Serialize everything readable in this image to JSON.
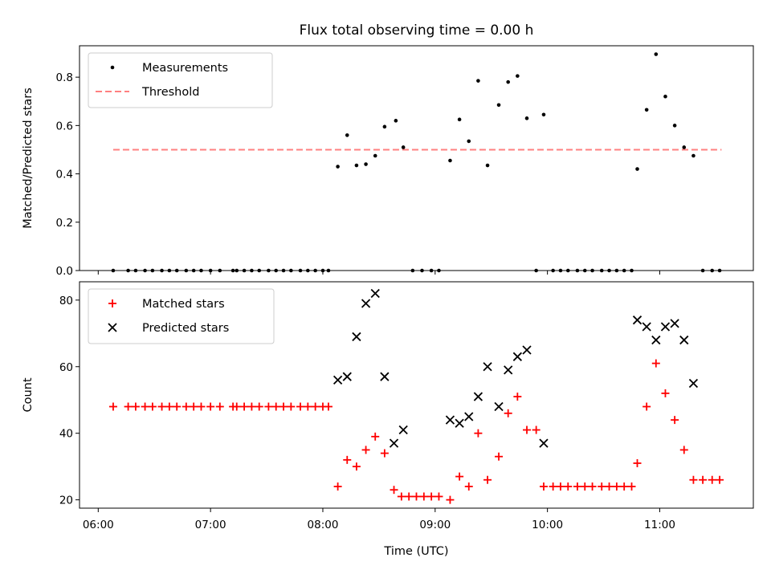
{
  "chart_data": {
    "title": "Flux total observing time = 0.00 h",
    "xlabel": "Time (UTC)",
    "xlim": [
      "05:50",
      "11:50"
    ],
    "x_ticks": [
      "06:00",
      "07:00",
      "08:00",
      "09:00",
      "10:00",
      "11:00"
    ],
    "panels": [
      {
        "type": "scatter",
        "ylabel": "Matched/Predicted stars",
        "ylim": [
          0,
          0.93
        ],
        "y_ticks": [
          0.0,
          0.2,
          0.4,
          0.6,
          0.8
        ],
        "legend_position": "upper-left",
        "threshold": {
          "name": "Threshold",
          "value": 0.5,
          "x_start": "06:08",
          "x_end": "11:33",
          "color": "#ff8080"
        },
        "series": [
          {
            "name": "Measurements",
            "color": "#000000",
            "marker": "dot",
            "points": [
              [
                "06:08",
                0
              ],
              [
                "06:16",
                0
              ],
              [
                "06:20",
                0
              ],
              [
                "06:25",
                0
              ],
              [
                "06:29",
                0
              ],
              [
                "06:34",
                0
              ],
              [
                "06:38",
                0
              ],
              [
                "06:42",
                0
              ],
              [
                "06:47",
                0
              ],
              [
                "06:51",
                0
              ],
              [
                "06:55",
                0
              ],
              [
                "07:00",
                0
              ],
              [
                "07:05",
                0
              ],
              [
                "07:12",
                0
              ],
              [
                "07:14",
                0
              ],
              [
                "07:18",
                0
              ],
              [
                "07:22",
                0
              ],
              [
                "07:26",
                0
              ],
              [
                "07:31",
                0
              ],
              [
                "07:35",
                0
              ],
              [
                "07:39",
                0
              ],
              [
                "07:43",
                0
              ],
              [
                "07:48",
                0
              ],
              [
                "07:52",
                0
              ],
              [
                "07:56",
                0
              ],
              [
                "08:00",
                0
              ],
              [
                "08:03",
                0
              ],
              [
                "08:08",
                0.43
              ],
              [
                "08:13",
                0.56
              ],
              [
                "08:18",
                0.435
              ],
              [
                "08:23",
                0.44
              ],
              [
                "08:28",
                0.475
              ],
              [
                "08:33",
                0.595
              ],
              [
                "08:39",
                0.62
              ],
              [
                "08:43",
                0.51
              ],
              [
                "08:48",
                0
              ],
              [
                "08:53",
                0
              ],
              [
                "08:58",
                0
              ],
              [
                "09:02",
                0
              ],
              [
                "09:08",
                0.455
              ],
              [
                "09:13",
                0.625
              ],
              [
                "09:18",
                0.535
              ],
              [
                "09:23",
                0.785
              ],
              [
                "09:28",
                0.435
              ],
              [
                "09:34",
                0.685
              ],
              [
                "09:39",
                0.78
              ],
              [
                "09:44",
                0.805
              ],
              [
                "09:49",
                0.63
              ],
              [
                "09:54",
                0
              ],
              [
                "09:58",
                0.645
              ],
              [
                "10:03",
                0
              ],
              [
                "10:07",
                0
              ],
              [
                "10:11",
                0
              ],
              [
                "10:16",
                0
              ],
              [
                "10:20",
                0
              ],
              [
                "10:24",
                0
              ],
              [
                "10:29",
                0
              ],
              [
                "10:33",
                0
              ],
              [
                "10:37",
                0
              ],
              [
                "10:41",
                0
              ],
              [
                "10:45",
                0
              ],
              [
                "10:48",
                0.42
              ],
              [
                "10:53",
                0.665
              ],
              [
                "10:58",
                0.895
              ],
              [
                "11:03",
                0.72
              ],
              [
                "11:08",
                0.6
              ],
              [
                "11:13",
                0.51
              ],
              [
                "11:18",
                0.475
              ],
              [
                "11:23",
                0
              ],
              [
                "11:28",
                0
              ],
              [
                "11:32",
                0
              ]
            ]
          }
        ]
      },
      {
        "type": "scatter",
        "ylabel": "Count",
        "ylim": [
          17.5,
          85.5
        ],
        "y_ticks": [
          20,
          40,
          60,
          80
        ],
        "legend_position": "upper-left",
        "series": [
          {
            "name": "Matched stars",
            "color": "#ff0000",
            "marker": "plus",
            "points": [
              [
                "06:08",
                48
              ],
              [
                "06:16",
                48
              ],
              [
                "06:20",
                48
              ],
              [
                "06:25",
                48
              ],
              [
                "06:29",
                48
              ],
              [
                "06:34",
                48
              ],
              [
                "06:38",
                48
              ],
              [
                "06:42",
                48
              ],
              [
                "06:47",
                48
              ],
              [
                "06:51",
                48
              ],
              [
                "06:55",
                48
              ],
              [
                "07:00",
                48
              ],
              [
                "07:05",
                48
              ],
              [
                "07:12",
                48
              ],
              [
                "07:14",
                48
              ],
              [
                "07:18",
                48
              ],
              [
                "07:22",
                48
              ],
              [
                "07:26",
                48
              ],
              [
                "07:31",
                48
              ],
              [
                "07:35",
                48
              ],
              [
                "07:39",
                48
              ],
              [
                "07:43",
                48
              ],
              [
                "07:48",
                48
              ],
              [
                "07:52",
                48
              ],
              [
                "07:56",
                48
              ],
              [
                "08:00",
                48
              ],
              [
                "08:03",
                48
              ],
              [
                "08:08",
                24
              ],
              [
                "08:13",
                32
              ],
              [
                "08:18",
                30
              ],
              [
                "08:23",
                35
              ],
              [
                "08:28",
                39
              ],
              [
                "08:33",
                34
              ],
              [
                "08:38",
                23
              ],
              [
                "08:42",
                21
              ],
              [
                "08:46",
                21
              ],
              [
                "08:50",
                21
              ],
              [
                "08:54",
                21
              ],
              [
                "08:58",
                21
              ],
              [
                "09:02",
                21
              ],
              [
                "09:08",
                20
              ],
              [
                "09:13",
                27
              ],
              [
                "09:18",
                24
              ],
              [
                "09:23",
                40
              ],
              [
                "09:28",
                26
              ],
              [
                "09:34",
                33
              ],
              [
                "09:39",
                46
              ],
              [
                "09:44",
                51
              ],
              [
                "09:49",
                41
              ],
              [
                "09:54",
                41
              ],
              [
                "09:58",
                24
              ],
              [
                "10:03",
                24
              ],
              [
                "10:07",
                24
              ],
              [
                "10:11",
                24
              ],
              [
                "10:16",
                24
              ],
              [
                "10:20",
                24
              ],
              [
                "10:24",
                24
              ],
              [
                "10:29",
                24
              ],
              [
                "10:33",
                24
              ],
              [
                "10:37",
                24
              ],
              [
                "10:41",
                24
              ],
              [
                "10:45",
                24
              ],
              [
                "10:48",
                31
              ],
              [
                "10:53",
                48
              ],
              [
                "10:58",
                61
              ],
              [
                "11:03",
                52
              ],
              [
                "11:08",
                44
              ],
              [
                "11:13",
                35
              ],
              [
                "11:18",
                26
              ],
              [
                "11:23",
                26
              ],
              [
                "11:28",
                26
              ],
              [
                "11:32",
                26
              ]
            ]
          },
          {
            "name": "Predicted stars",
            "color": "#000000",
            "marker": "x",
            "points": [
              [
                "08:08",
                56
              ],
              [
                "08:13",
                57
              ],
              [
                "08:18",
                69
              ],
              [
                "08:23",
                79
              ],
              [
                "08:28",
                82
              ],
              [
                "08:33",
                57
              ],
              [
                "08:38",
                37
              ],
              [
                "08:43",
                41
              ],
              [
                "09:08",
                44
              ],
              [
                "09:13",
                43
              ],
              [
                "09:18",
                45
              ],
              [
                "09:23",
                51
              ],
              [
                "09:28",
                60
              ],
              [
                "09:34",
                48
              ],
              [
                "09:39",
                59
              ],
              [
                "09:44",
                63
              ],
              [
                "09:49",
                65
              ],
              [
                "09:58",
                37
              ],
              [
                "10:48",
                74
              ],
              [
                "10:53",
                72
              ],
              [
                "10:58",
                68
              ],
              [
                "11:03",
                72
              ],
              [
                "11:08",
                73
              ],
              [
                "11:13",
                68
              ],
              [
                "11:18",
                55
              ]
            ]
          }
        ]
      }
    ]
  }
}
